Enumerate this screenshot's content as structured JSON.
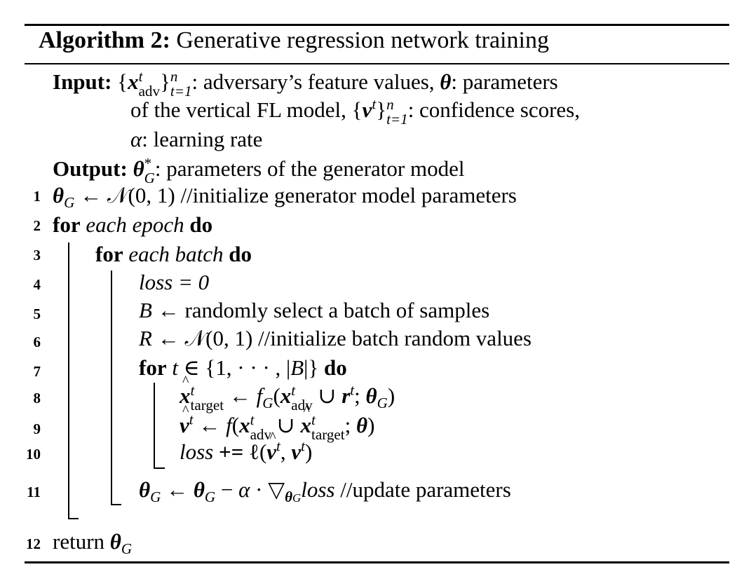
{
  "algorithm": {
    "label": "Algorithm 2:",
    "name": "Generative regression network training"
  },
  "input": {
    "keyword": "Input:",
    "line1_text": ": adversary’s feature values, ",
    "line1_end": ": parameters",
    "line2_text": "of the vertical FL model, ",
    "line2_end": ": confidence scores,",
    "line3_end": ": learning rate"
  },
  "output": {
    "keyword": "Output:",
    "text": ": parameters of the generator model"
  },
  "lines": {
    "n1": "1",
    "n2": "2",
    "n3": "3",
    "n4": "4",
    "n5": "5",
    "n6": "6",
    "n7": "7",
    "n8": "8",
    "n9": "9",
    "n10": "10",
    "n11": "11",
    "n12": "12",
    "l1_comment": "//initialize generator model parameters",
    "for_kw": "for",
    "do_kw": "do",
    "l2_text": "each epoch",
    "l3_text": "each batch",
    "l4_expr": "loss = 0",
    "l5_text": "randomly select a batch of samples",
    "l6_comment": "//initialize batch random values",
    "l10_op": "+=",
    "l11_comment": "//update parameters",
    "l12_kw": "return"
  },
  "subscripts": {
    "adv": "adv",
    "target": "target",
    "t_eq_1": "t=1",
    "n": "n",
    "t": "t"
  }
}
